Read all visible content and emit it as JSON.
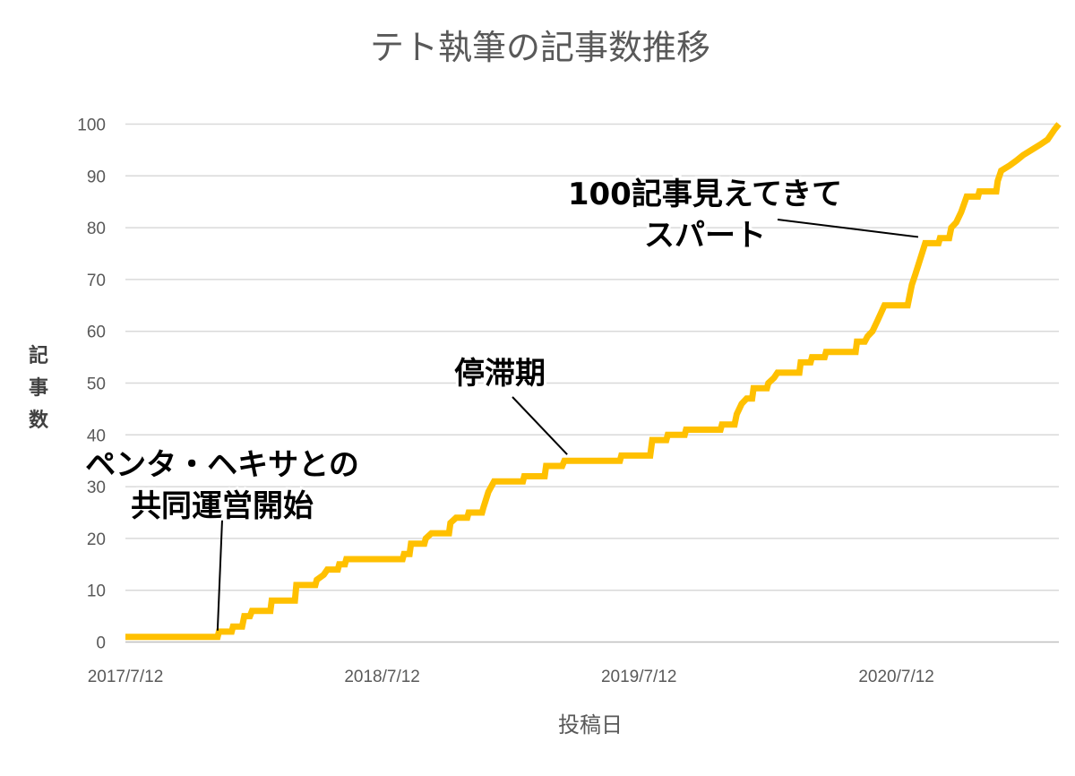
{
  "chart_data": {
    "type": "line",
    "title": "テト執筆の記事数推移",
    "xlabel": "投稿日",
    "ylabel": "記事数",
    "ylim": [
      0,
      100
    ],
    "yticks": [
      0,
      10,
      20,
      30,
      40,
      50,
      60,
      70,
      80,
      90,
      100
    ],
    "xticks": [
      "2017/7/12",
      "2018/7/12",
      "2019/7/12",
      "2020/7/12"
    ],
    "xlim": [
      "2017/7/12",
      "2021/2/28"
    ],
    "grid": true,
    "legend": "none",
    "series": [
      {
        "color": "#ffc000",
        "points": [
          [
            "2017/7/12",
            1
          ],
          [
            "2017/11/20",
            1
          ],
          [
            "2017/11/22",
            2
          ],
          [
            "2017/12/10",
            2
          ],
          [
            "2017/12/12",
            3
          ],
          [
            "2017/12/25",
            3
          ],
          [
            "2017/12/28",
            5
          ],
          [
            "2018/1/5",
            5
          ],
          [
            "2018/1/8",
            6
          ],
          [
            "2018/2/3",
            6
          ],
          [
            "2018/2/5",
            8
          ],
          [
            "2018/3/10",
            8
          ],
          [
            "2018/3/12",
            11
          ],
          [
            "2018/4/8",
            11
          ],
          [
            "2018/4/10",
            12
          ],
          [
            "2018/4/20",
            13
          ],
          [
            "2018/4/25",
            14
          ],
          [
            "2018/5/10",
            14
          ],
          [
            "2018/5/12",
            15
          ],
          [
            "2018/5/20",
            15
          ],
          [
            "2018/5/22",
            16
          ],
          [
            "2018/8/10",
            16
          ],
          [
            "2018/8/12",
            17
          ],
          [
            "2018/8/20",
            17
          ],
          [
            "2018/8/22",
            19
          ],
          [
            "2018/9/10",
            19
          ],
          [
            "2018/9/12",
            20
          ],
          [
            "2018/9/20",
            21
          ],
          [
            "2018/10/15",
            21
          ],
          [
            "2018/10/17",
            23
          ],
          [
            "2018/10/25",
            24
          ],
          [
            "2018/11/10",
            24
          ],
          [
            "2018/11/12",
            25
          ],
          [
            "2018/12/1",
            25
          ],
          [
            "2018/12/3",
            26
          ],
          [
            "2018/12/10",
            29
          ],
          [
            "2018/12/18",
            31
          ],
          [
            "2019/1/28",
            31
          ],
          [
            "2019/1/30",
            32
          ],
          [
            "2019/2/28",
            32
          ],
          [
            "2019/3/2",
            34
          ],
          [
            "2019/3/25",
            34
          ],
          [
            "2019/3/28",
            35
          ],
          [
            "2019/6/15",
            35
          ],
          [
            "2019/6/17",
            36
          ],
          [
            "2019/7/28",
            36
          ],
          [
            "2019/7/31",
            39
          ],
          [
            "2019/8/20",
            39
          ],
          [
            "2019/8/22",
            40
          ],
          [
            "2019/9/15",
            40
          ],
          [
            "2019/9/17",
            41
          ],
          [
            "2019/11/5",
            41
          ],
          [
            "2019/11/7",
            42
          ],
          [
            "2019/11/25",
            42
          ],
          [
            "2019/11/28",
            44
          ],
          [
            "2019/12/5",
            46
          ],
          [
            "2019/12/12",
            47
          ],
          [
            "2019/12/20",
            47
          ],
          [
            "2019/12/22",
            49
          ],
          [
            "2020/1/10",
            49
          ],
          [
            "2020/1/12",
            50
          ],
          [
            "2020/1/20",
            51
          ],
          [
            "2020/1/25",
            52
          ],
          [
            "2020/2/25",
            52
          ],
          [
            "2020/2/27",
            54
          ],
          [
            "2020/3/12",
            54
          ],
          [
            "2020/3/14",
            55
          ],
          [
            "2020/4/1",
            55
          ],
          [
            "2020/4/3",
            56
          ],
          [
            "2020/5/15",
            56
          ],
          [
            "2020/5/17",
            58
          ],
          [
            "2020/5/28",
            58
          ],
          [
            "2020/6/1",
            59
          ],
          [
            "2020/6/8",
            60
          ],
          [
            "2020/6/15",
            62
          ],
          [
            "2020/6/25",
            65
          ],
          [
            "2020/7/28",
            65
          ],
          [
            "2020/8/3",
            69
          ],
          [
            "2020/8/8",
            71
          ],
          [
            "2020/8/15",
            74
          ],
          [
            "2020/8/22",
            77
          ],
          [
            "2020/9/10",
            77
          ],
          [
            "2020/9/12",
            78
          ],
          [
            "2020/9/25",
            78
          ],
          [
            "2020/9/28",
            80
          ],
          [
            "2020/10/5",
            81
          ],
          [
            "2020/10/12",
            83
          ],
          [
            "2020/10/20",
            86
          ],
          [
            "2020/11/5",
            86
          ],
          [
            "2020/11/7",
            87
          ],
          [
            "2020/12/1",
            87
          ],
          [
            "2020/12/3",
            89
          ],
          [
            "2020/12/8",
            91
          ],
          [
            "2020/12/20",
            92
          ],
          [
            "2020/12/30",
            93
          ],
          [
            "2021/1/8",
            94
          ],
          [
            "2021/1/20",
            95
          ],
          [
            "2021/2/1",
            96
          ],
          [
            "2021/2/12",
            97
          ],
          [
            "2021/2/22",
            99
          ],
          [
            "2021/2/28",
            100
          ]
        ]
      }
    ],
    "annotations": [
      {
        "lines": [
          "ペンタ・ヘキサとの",
          "共同運営開始"
        ],
        "target": [
          "2017/11/20",
          1
        ]
      },
      {
        "lines": [
          "停滞期"
        ],
        "target": [
          "2019/4/1",
          35
        ]
      },
      {
        "lines": [
          "100記事見えてきて",
          "スパート"
        ],
        "target": [
          "2020/8/12",
          77
        ]
      }
    ]
  }
}
